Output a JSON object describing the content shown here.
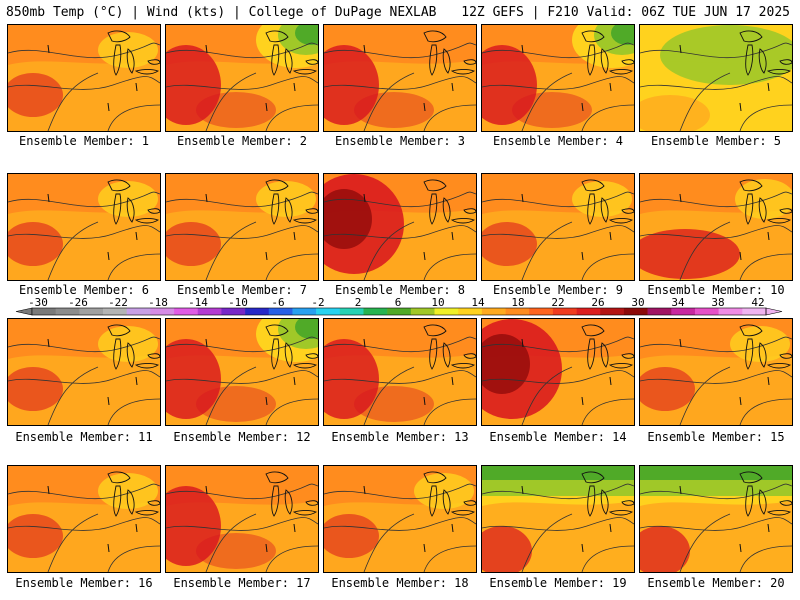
{
  "header": {
    "title_left": "850mb Temp (°C) | Wind (kts) | College of DuPage NEXLAB",
    "title_right": "12Z GEFS | F210 Valid: 06Z TUE JUN 17 2025"
  },
  "caption_prefix": "Ensemble Member: ",
  "members": [
    {
      "id": 1,
      "label": "Ensemble Member: 1",
      "style": "warm"
    },
    {
      "id": 2,
      "label": "Ensemble Member: 2",
      "style": "hot-west-cool-ne"
    },
    {
      "id": 3,
      "label": "Ensemble Member: 3",
      "style": "hot-west"
    },
    {
      "id": 4,
      "label": "Ensemble Member: 4",
      "style": "hot-west-cool-ne"
    },
    {
      "id": 5,
      "label": "Ensemble Member: 5",
      "style": "cool"
    },
    {
      "id": 6,
      "label": "Ensemble Member: 6",
      "style": "warm"
    },
    {
      "id": 7,
      "label": "Ensemble Member: 7",
      "style": "warm"
    },
    {
      "id": 8,
      "label": "Ensemble Member: 8",
      "style": "very-hot"
    },
    {
      "id": 9,
      "label": "Ensemble Member: 9",
      "style": "warm"
    },
    {
      "id": 10,
      "label": "Ensemble Member: 10",
      "style": "hot-south"
    },
    {
      "id": 11,
      "label": "Ensemble Member: 11",
      "style": "warm"
    },
    {
      "id": 12,
      "label": "Ensemble Member: 12",
      "style": "hot-west-cool-ne"
    },
    {
      "id": 13,
      "label": "Ensemble Member: 13",
      "style": "hot-west"
    },
    {
      "id": 14,
      "label": "Ensemble Member: 14",
      "style": "very-hot"
    },
    {
      "id": 15,
      "label": "Ensemble Member: 15",
      "style": "warm"
    },
    {
      "id": 16,
      "label": "Ensemble Member: 16",
      "style": "warm"
    },
    {
      "id": 17,
      "label": "Ensemble Member: 17",
      "style": "hot-west"
    },
    {
      "id": 18,
      "label": "Ensemble Member: 18",
      "style": "warm"
    },
    {
      "id": 19,
      "label": "Ensemble Member: 19",
      "style": "cool-north"
    },
    {
      "id": 20,
      "label": "Ensemble Member: 20",
      "style": "cool-north"
    }
  ],
  "colorbar": {
    "ticks": [
      "-30",
      "-26",
      "-22",
      "-18",
      "-14",
      "-10",
      "-6",
      "-2",
      "2",
      "6",
      "10",
      "14",
      "18",
      "22",
      "26",
      "30",
      "34",
      "38",
      "42"
    ],
    "colors": [
      "#7a7a7a",
      "#8c8c8c",
      "#a0a0a0",
      "#b4b4b4",
      "#c8a0e6",
      "#d68ce6",
      "#e05ce6",
      "#b43cd2",
      "#7828c8",
      "#2828c8",
      "#2860e6",
      "#28a0f0",
      "#28d2f0",
      "#28d2b4",
      "#28b450",
      "#50aa28",
      "#a0c828",
      "#f0f028",
      "#ffd21e",
      "#ffaa1e",
      "#ff8c1e",
      "#ff641e",
      "#f03c1e",
      "#dc1e1e",
      "#b41414",
      "#8c0a0a",
      "#a01464",
      "#c828a0",
      "#e650c8",
      "#f08ce6",
      "#f0b4f0"
    ]
  },
  "palette": {
    "hot": "#d8141e",
    "very_hot": "#8c0a0a",
    "orange": "#ff8c1e",
    "light_orange": "#ffaa1e",
    "yellow": "#ffd21e",
    "lime": "#a0c828",
    "green": "#50aa28",
    "contour": "#333333"
  }
}
